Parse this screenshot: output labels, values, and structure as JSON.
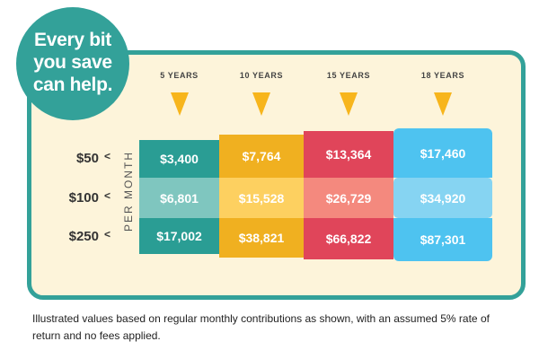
{
  "badge": {
    "line1": "Every bit",
    "line2": "you save",
    "line3": "can help."
  },
  "colors": {
    "teal": "#33a199",
    "card_background": "#fdf4da",
    "arrow": "#f7b51c",
    "columns": [
      [
        "#2a9d94",
        "#7fc6bf",
        "#2a9d94"
      ],
      [
        "#f0b020",
        "#fdd060",
        "#f0b020"
      ],
      [
        "#e0455a",
        "#f4897e",
        "#e0455a"
      ],
      [
        "#4ec3f0",
        "#86d4f2",
        "#4ec3f0"
      ]
    ]
  },
  "axis": {
    "per_month": "PER MONTH"
  },
  "chart_data": {
    "type": "table",
    "columns": [
      "5 YEARS",
      "10 YEARS",
      "15 YEARS",
      "18 YEARS"
    ],
    "rows": [
      {
        "label": "$50",
        "values": [
          "$3,400",
          "$7,764",
          "$13,364",
          "$17,460"
        ]
      },
      {
        "label": "$100",
        "values": [
          "$6,801",
          "$15,528",
          "$26,729",
          "$34,920"
        ]
      },
      {
        "label": "$250",
        "values": [
          "$17,002",
          "$38,821",
          "$66,822",
          "$87,301"
        ]
      }
    ]
  },
  "footnote": "Illustrated values based on regular monthly contributions as shown, with an assumed 5% rate of return and no fees applied."
}
